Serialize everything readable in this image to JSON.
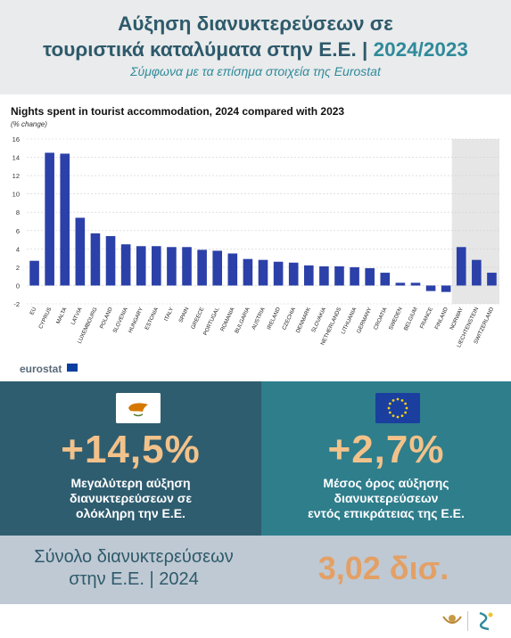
{
  "header": {
    "title_line1": "Αύξηση διανυκτερεύσεων σε",
    "title_line2_main": "τουριστικά καταλύματα στην Ε.Ε. |",
    "title_line2_accent": "2024/2023",
    "subtitle": "Σύμφωνα με τα επίσημα στοιχεία της Eurostat"
  },
  "chart_data": {
    "type": "bar",
    "title": "Nights spent in tourist accommodation, 2024 compared with 2023",
    "unit": "(% change)",
    "categories": [
      "EU",
      "CYPRUS",
      "MALTA",
      "LATVIA",
      "LUXEMBOURG",
      "POLAND",
      "SLOVENIA",
      "HUNGARY",
      "ESTONIA",
      "ITALY",
      "SPAIN",
      "GREECE",
      "PORTUGAL",
      "ROMANIA",
      "BULGARIA",
      "AUSTRIA",
      "IRELAND",
      "CZECHIA",
      "DENMARK",
      "SLOVAKIA",
      "NETHERLANDS",
      "LITHUANIA",
      "GERMANY",
      "CROATIA",
      "SWEDEN",
      "BELGIUM",
      "FRANCE",
      "FINLAND",
      "NORWAY",
      "LIECHTENSTEIN",
      "SWITZERLAND"
    ],
    "values": [
      2.7,
      14.5,
      14.4,
      7.4,
      5.7,
      5.4,
      4.5,
      4.3,
      4.3,
      4.2,
      4.2,
      3.9,
      3.8,
      3.5,
      2.9,
      2.8,
      2.6,
      2.5,
      2.2,
      2.1,
      2.1,
      2.0,
      1.9,
      1.4,
      0.3,
      0.3,
      -0.6,
      -0.7,
      4.2,
      2.8,
      1.4
    ],
    "shaded_categories": [
      "NORWAY",
      "LIECHTENSTEIN",
      "SWITZERLAND"
    ],
    "ylim": [
      -2,
      16
    ],
    "yticks": [
      -2,
      0,
      2,
      4,
      6,
      8,
      10,
      12,
      14,
      16
    ],
    "grid": true,
    "bar_color": "#2b40a8",
    "source_logo_text": "eurostat"
  },
  "left_panel": {
    "value": "+14,5%",
    "description_line1": "Μεγαλύτερη αύξηση",
    "description_line2": "διανυκτερεύσεων σε",
    "description_line3": "ολόκληρη την Ε.Ε."
  },
  "right_panel": {
    "value": "+2,7%",
    "description_line1": "Μέσος όρος αύξησης",
    "description_line2": "διανυκτερεύσεων",
    "description_line3": "εντός επικράτειας της Ε.Ε."
  },
  "total": {
    "label_line1": "Σύνολο διανυκτερεύσεων",
    "label_line2": "στην Ε.Ε. | 2024",
    "value": "3,02 δισ."
  },
  "colors": {
    "title": "#2e5a6b",
    "accent": "#2f8a9a",
    "stat_value": "#f2c28a",
    "total_value": "#e3a066"
  }
}
